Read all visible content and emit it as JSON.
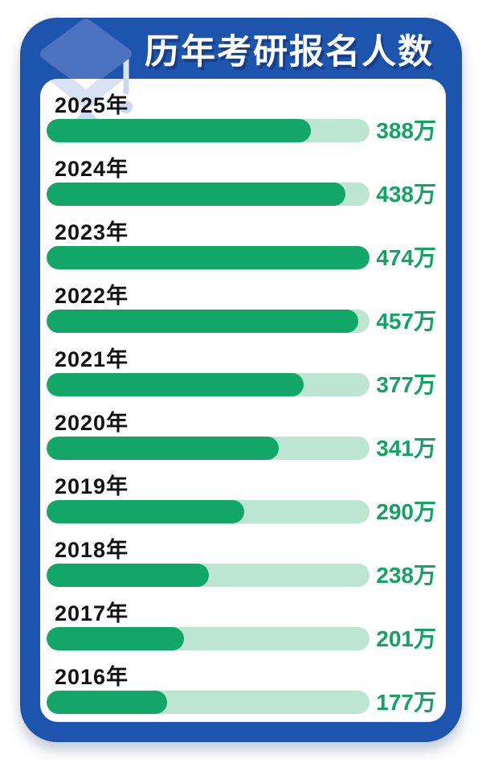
{
  "header": {
    "title": "历年考研报名人数",
    "icon": "graduation-cap-icon"
  },
  "colors": {
    "panel_blue": "#1D54AE",
    "card_white": "#FFFFFF",
    "title_white": "#FFFFFF",
    "bar_fill_green": "#12A668",
    "bar_track_green": "#BCE6D1",
    "value_green": "#14A362",
    "year_black": "#121212",
    "icon_board_blue": "#4B72BE",
    "icon_light_blue": "#D9E2F3",
    "icon_dot_blue": "#CBD8EF"
  },
  "chart_data": {
    "type": "bar",
    "orientation": "horizontal",
    "title": "历年考研报名人数",
    "unit": "万",
    "x_max": 474,
    "grid": false,
    "legend": false,
    "categories": [
      "2025年",
      "2024年",
      "2023年",
      "2022年",
      "2021年",
      "2020年",
      "2019年",
      "2018年",
      "2017年",
      "2016年"
    ],
    "values": [
      388,
      438,
      474,
      457,
      377,
      341,
      290,
      238,
      201,
      177
    ],
    "value_labels": [
      "388万",
      "438万",
      "474万",
      "457万",
      "377万",
      "341万",
      "290万",
      "238万",
      "201万",
      "177万"
    ]
  }
}
